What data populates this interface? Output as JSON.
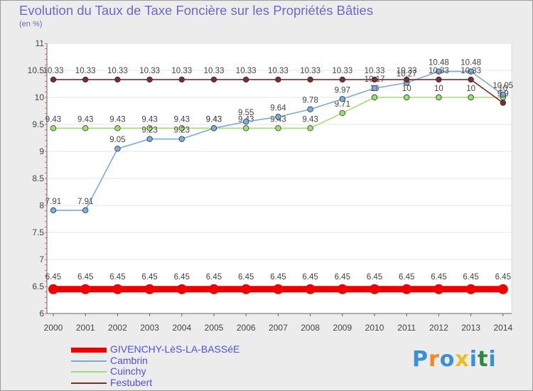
{
  "title": "Evolution du Taux de Taxe Foncière sur les Propriétés Bâties",
  "unit": "(en %)",
  "logo": {
    "chars": [
      "P",
      "r",
      "o",
      "x",
      "i",
      "t",
      "i"
    ],
    "colors": [
      "#3a8fd8",
      "#f08a24",
      "#3a8fd8",
      "#e8c020",
      "#3a8fd8",
      "#2c8a3c",
      "#3a8fd8"
    ]
  },
  "chart_data": {
    "type": "line",
    "title": "Evolution du Taux de Taxe Foncière sur les Propriétés Bâties",
    "ylabel": "(en %)",
    "xlabel": "",
    "ylim": [
      6,
      11
    ],
    "yticks": [
      "6",
      "6.5",
      "7",
      "7.5",
      "8",
      "8.5",
      "9",
      "9.5",
      "10",
      "10.5",
      "11"
    ],
    "x": [
      "2000",
      "2001",
      "2002",
      "2003",
      "2004",
      "2005",
      "2006",
      "2007",
      "2008",
      "2009",
      "2010",
      "2011",
      "2012",
      "2013",
      "2014"
    ],
    "series": [
      {
        "name": "GIVENCHY-LèS-LA-BASSéE",
        "color": "#ee0000",
        "legend_label": "GIVENCHY-LèS-LA-BASSéE",
        "values": [
          6.45,
          6.45,
          6.45,
          6.45,
          6.45,
          6.45,
          6.45,
          6.45,
          6.45,
          6.45,
          6.45,
          6.45,
          6.45,
          6.45,
          6.45
        ],
        "labels": [
          "6.45",
          "6.45",
          "6.45",
          "6.45",
          "6.45",
          "6.45",
          "6.45",
          "6.45",
          "6.45",
          "6.45",
          "6.45",
          "6.45",
          "6.45",
          "6.45",
          "6.45"
        ]
      },
      {
        "name": "Cambrin",
        "color": "#7cacdc",
        "legend_label": "Cambrin",
        "values": [
          7.91,
          7.91,
          9.05,
          9.23,
          9.23,
          9.43,
          9.55,
          9.64,
          9.78,
          9.97,
          10.17,
          10.27,
          10.48,
          10.48,
          10.05
        ],
        "labels": [
          "7.91",
          "7.91",
          "9.05",
          "9.23",
          "9.23",
          "9.43",
          "9.55",
          "9.64",
          "9.78",
          "9.97",
          "10.17",
          "10.27",
          "10.48",
          "10.48",
          "10.05"
        ]
      },
      {
        "name": "Cuinchy",
        "color": "#9ee070",
        "legend_label": "Cuinchy",
        "values": [
          9.43,
          9.43,
          9.43,
          9.43,
          9.43,
          9.43,
          9.43,
          9.43,
          9.43,
          9.71,
          10,
          10,
          10,
          10,
          10
        ],
        "labels": [
          "9.43",
          "9.43",
          "9.43",
          "9.43",
          "9.43",
          "9.43",
          "9.43",
          "9.43",
          "9.43",
          "9.71",
          "10",
          "10",
          "10",
          "10",
          "10"
        ]
      },
      {
        "name": "Festubert",
        "color": "#7a2e2e",
        "legend_label": "Festubert",
        "values": [
          10.33,
          10.33,
          10.33,
          10.33,
          10.33,
          10.33,
          10.33,
          10.33,
          10.33,
          10.33,
          10.33,
          10.33,
          10.33,
          10.33,
          9.9
        ],
        "labels": [
          "10.33",
          "10.33",
          "10.33",
          "10.33",
          "10.33",
          "10.33",
          "10.33",
          "10.33",
          "10.33",
          "10.33",
          "10.33",
          "10.33",
          "10.33",
          "10.33",
          "9.9"
        ]
      }
    ]
  }
}
